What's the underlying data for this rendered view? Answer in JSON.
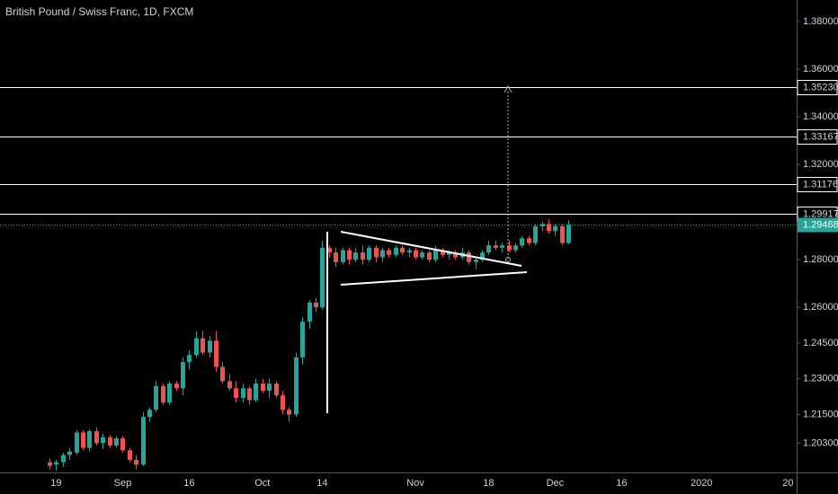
{
  "chart_data": {
    "type": "candlestick",
    "title": "British Pound / Swiss Franc, 1D, FXCM",
    "up_color": "#26a69a",
    "down_color": "#ef5350",
    "categories": [
      null,
      "19",
      null,
      null,
      null,
      null,
      null,
      null,
      null,
      null,
      null,
      "Sep",
      null,
      null,
      null,
      null,
      null,
      null,
      null,
      null,
      null,
      "16",
      null,
      null,
      null,
      null,
      null,
      null,
      null,
      null,
      null,
      null,
      "Oct",
      null,
      null,
      null,
      null,
      null,
      null,
      null,
      null,
      "14",
      null,
      null,
      null,
      null,
      null,
      null,
      null,
      null,
      null,
      null,
      null,
      null,
      null,
      "Nov",
      null,
      null,
      null,
      null,
      null,
      null,
      null,
      null,
      null,
      null,
      "18",
      null,
      null,
      null,
      null,
      null,
      null,
      null,
      null,
      null,
      "Dec",
      null,
      null,
      null,
      null,
      null,
      null,
      null,
      null,
      null,
      "16",
      null,
      null,
      null,
      null,
      null,
      null,
      null,
      null,
      null,
      null,
      null,
      "2020",
      null,
      null,
      null,
      null,
      null,
      null,
      null,
      null,
      null,
      null,
      null,
      null,
      "20",
      null
    ],
    "open": [
      1.195,
      1.194,
      1.195,
      1.198,
      1.199,
      1.2075,
      1.201,
      1.208,
      1.203,
      1.2055,
      1.202,
      1.205,
      1.2,
      1.196,
      1.194,
      1.214,
      1.217,
      1.227,
      1.22,
      1.228,
      1.226,
      1.237,
      1.24,
      1.247,
      1.241,
      1.246,
      1.235,
      1.229,
      1.226,
      1.222,
      1.226,
      1.221,
      1.228,
      1.225,
      1.228,
      1.223,
      1.217,
      1.215,
      1.239,
      1.254,
      1.262,
      1.26,
      1.285,
      1.283,
      1.279,
      1.284,
      1.28,
      1.283,
      1.28,
      1.285,
      1.281,
      1.284,
      1.282,
      1.285,
      1.283,
      1.284,
      1.281,
      1.283,
      1.28,
      1.284,
      1.282,
      1.283,
      1.281,
      1.283,
      1.279,
      1.28,
      1.283,
      1.286,
      1.285,
      1.286,
      1.284,
      1.286,
      1.289,
      1.287,
      1.294,
      1.295,
      1.292,
      1.294,
      1.287,
      null,
      null,
      null,
      null,
      null,
      null,
      null,
      null,
      null,
      null,
      null,
      null,
      null,
      null,
      null,
      null,
      null,
      null,
      null,
      null,
      null,
      null,
      null,
      null,
      null,
      null,
      null,
      null,
      null,
      null,
      null,
      null,
      null,
      null
    ],
    "high": [
      1.1965,
      1.196,
      1.199,
      1.201,
      1.2085,
      1.2085,
      1.209,
      1.2095,
      1.207,
      1.2065,
      1.206,
      1.206,
      1.201,
      1.198,
      1.216,
      1.218,
      1.229,
      1.228,
      1.229,
      1.229,
      1.239,
      1.242,
      1.25,
      1.25,
      1.248,
      1.25,
      1.237,
      1.232,
      1.229,
      1.228,
      1.227,
      1.23,
      1.23,
      1.23,
      1.229,
      1.225,
      1.218,
      1.241,
      1.256,
      1.263,
      1.264,
      1.288,
      1.286,
      1.285,
      1.285,
      1.285,
      1.285,
      1.286,
      1.286,
      1.286,
      1.285,
      1.285,
      1.286,
      1.286,
      1.285,
      1.285,
      1.284,
      1.284,
      1.286,
      1.285,
      1.284,
      1.284,
      1.285,
      1.284,
      1.281,
      1.284,
      1.288,
      1.288,
      1.287,
      1.288,
      1.287,
      1.29,
      1.29,
      1.295,
      1.296,
      1.297,
      1.295,
      1.295,
      1.2965,
      null,
      null,
      null,
      null,
      null,
      null,
      null,
      null,
      null,
      null,
      null,
      null,
      null,
      null,
      null,
      null,
      null,
      null,
      null,
      null,
      null,
      null,
      null,
      null,
      null,
      null,
      null,
      null,
      null,
      null,
      null,
      null,
      null,
      null
    ],
    "low": [
      1.192,
      1.1915,
      1.193,
      1.196,
      1.198,
      1.2,
      1.1995,
      1.202,
      1.2005,
      1.201,
      1.201,
      1.199,
      1.195,
      1.192,
      1.1935,
      1.212,
      1.216,
      1.219,
      1.219,
      1.225,
      1.223,
      1.234,
      1.239,
      1.24,
      1.239,
      1.233,
      1.228,
      1.225,
      1.22,
      1.22,
      1.219,
      1.22,
      1.224,
      1.222,
      1.222,
      1.215,
      1.212,
      1.214,
      1.236,
      1.251,
      1.258,
      1.259,
      1.281,
      1.277,
      1.278,
      1.278,
      1.279,
      1.278,
      1.279,
      1.279,
      1.279,
      1.281,
      1.281,
      1.282,
      1.281,
      1.28,
      1.28,
      1.279,
      1.279,
      1.281,
      1.28,
      1.28,
      1.28,
      1.278,
      1.276,
      1.279,
      1.282,
      1.284,
      1.283,
      1.283,
      1.283,
      1.285,
      1.286,
      1.286,
      1.292,
      1.291,
      1.29,
      1.286,
      1.2865,
      null,
      null,
      null,
      null,
      null,
      null,
      null,
      null,
      null,
      null,
      null,
      null,
      null,
      null,
      null,
      null,
      null,
      null,
      null,
      null,
      null,
      null,
      null,
      null,
      null,
      null,
      null,
      null,
      null,
      null,
      null,
      null,
      null,
      null
    ],
    "close": [
      1.1935,
      1.195,
      1.198,
      1.1995,
      1.2075,
      1.201,
      1.208,
      1.203,
      1.2055,
      1.202,
      1.205,
      1.2,
      1.196,
      1.194,
      1.214,
      1.217,
      1.227,
      1.22,
      1.228,
      1.226,
      1.237,
      1.24,
      1.247,
      1.241,
      1.246,
      1.235,
      1.229,
      1.226,
      1.222,
      1.226,
      1.221,
      1.228,
      1.225,
      1.228,
      1.223,
      1.217,
      1.215,
      1.239,
      1.254,
      1.262,
      1.26,
      1.285,
      1.283,
      1.279,
      1.284,
      1.28,
      1.283,
      1.28,
      1.285,
      1.281,
      1.284,
      1.282,
      1.285,
      1.283,
      1.284,
      1.281,
      1.283,
      1.28,
      1.284,
      1.282,
      1.283,
      1.281,
      1.283,
      1.279,
      1.28,
      1.283,
      1.286,
      1.285,
      1.286,
      1.284,
      1.286,
      1.289,
      1.287,
      1.294,
      1.295,
      1.292,
      1.294,
      1.287,
      1.29468,
      null,
      null,
      null,
      null,
      null,
      null,
      null,
      null,
      null,
      null,
      null,
      null,
      null,
      null,
      null,
      null,
      null,
      null,
      null,
      null,
      null,
      null,
      null,
      null,
      null,
      null,
      null,
      null,
      null,
      null,
      null,
      null,
      null,
      null
    ],
    "ylim": [
      1.1907,
      1.389
    ],
    "yticks": [
      {
        "value": 1.38,
        "label": "1.38000"
      },
      {
        "value": 1.36,
        "label": "1.36000"
      },
      {
        "value": 1.34,
        "label": "1.34000"
      },
      {
        "value": 1.32,
        "label": "1.32000"
      },
      {
        "value": 1.28,
        "label": "1.28000"
      },
      {
        "value": 1.26,
        "label": "1.26000"
      },
      {
        "value": 1.245,
        "label": "1.24500"
      },
      {
        "value": 1.23,
        "label": "1.23000"
      },
      {
        "value": 1.215,
        "label": "1.21500"
      },
      {
        "value": 1.203,
        "label": "1.20300"
      }
    ],
    "levels": [
      {
        "value": 1.3523,
        "label": "1.35230"
      },
      {
        "value": 1.33167,
        "label": "1.33167"
      },
      {
        "value": 1.31176,
        "label": "1.31176"
      },
      {
        "value": 1.29917,
        "label": "1.29917"
      }
    ],
    "level_color": "#ffffff",
    "last_price": {
      "value": 1.29468,
      "label": "1.29468"
    }
  }
}
